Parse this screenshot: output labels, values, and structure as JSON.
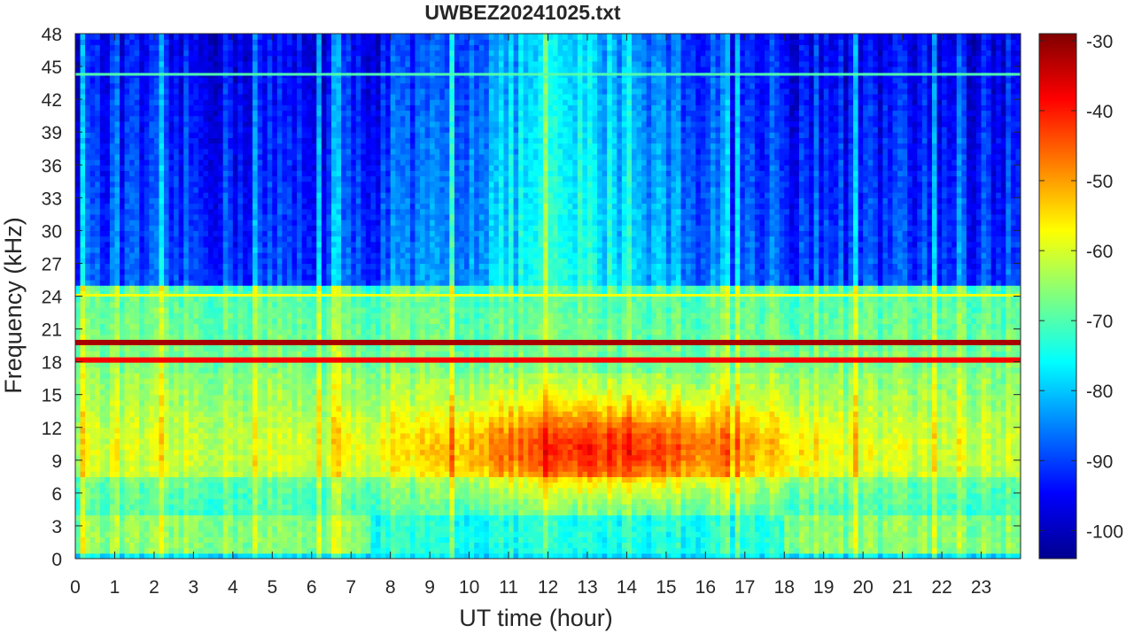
{
  "chart_data": {
    "type": "heatmap",
    "title": "UWBEZ20241025.txt",
    "xlabel": "UT time (hour)",
    "ylabel": "Frequency (kHz)",
    "xlim": [
      0,
      24
    ],
    "ylim": [
      0,
      48
    ],
    "x_ticks": [
      "0",
      "1",
      "2",
      "3",
      "4",
      "5",
      "6",
      "7",
      "8",
      "9",
      "10",
      "11",
      "12",
      "13",
      "14",
      "15",
      "16",
      "17",
      "18",
      "19",
      "20",
      "21",
      "22",
      "23"
    ],
    "y_ticks": [
      "0",
      "3",
      "6",
      "9",
      "12",
      "15",
      "18",
      "21",
      "24",
      "27",
      "30",
      "33",
      "36",
      "39",
      "42",
      "45",
      "48"
    ],
    "colorbar": {
      "colormap": "jet",
      "range": [
        -104,
        -29
      ],
      "ticks": [
        "-30",
        "-40",
        "-50",
        "-60",
        "-70",
        "-80",
        "-90",
        "-100"
      ]
    },
    "narrowband_lines_khz": [
      {
        "freq": 19.8,
        "level_db": -32
      },
      {
        "freq": 18.2,
        "level_db": -38
      },
      {
        "freq": 24.0,
        "level_db": -58
      },
      {
        "freq": 44.2,
        "level_db": -70
      }
    ],
    "broadband_regions": [
      {
        "hours": [
          9.5,
          18.5
        ],
        "freq_khz": [
          4,
          17
        ],
        "level_db": -50
      },
      {
        "hours": [
          0,
          24
        ],
        "freq_khz": [
          4,
          17
        ],
        "level_db": -58
      },
      {
        "hours": [
          0,
          24
        ],
        "freq_khz": [
          25,
          48
        ],
        "level_db": -85
      }
    ]
  }
}
